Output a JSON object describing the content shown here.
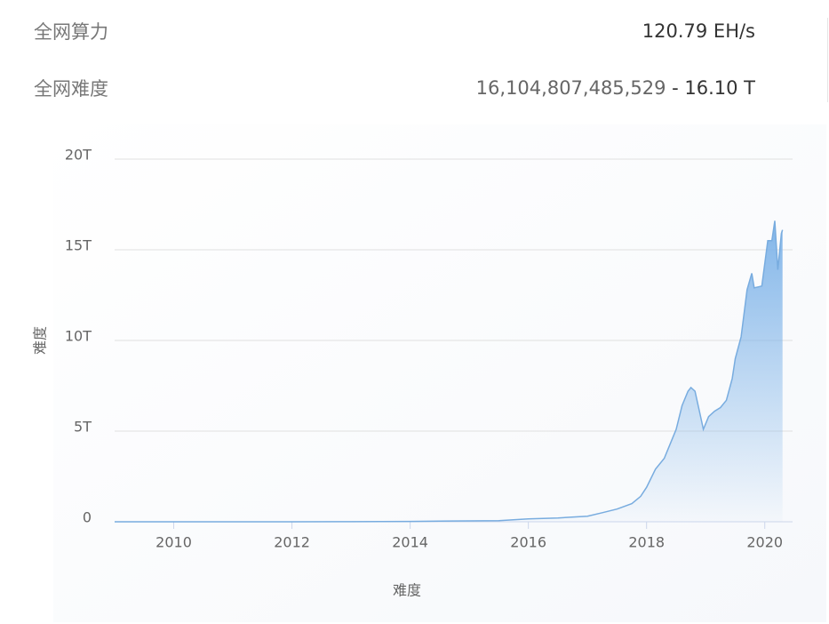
{
  "stats": [
    {
      "label": "全网算力",
      "value": "120.79 EH/s"
    },
    {
      "label": "全网难度",
      "value": "16,104,807,485,529",
      "value_short": "- 16.10 T"
    }
  ],
  "chart_data": {
    "type": "area",
    "x_label": "难度",
    "y_label": "难度",
    "color": "#78acdf",
    "grid": true,
    "xlim": [
      2009,
      2020.47
    ],
    "xticks": [
      2010,
      2012,
      2014,
      2016,
      2018,
      2020
    ],
    "ylim": [
      0,
      20
    ],
    "yticks": [
      0,
      {
        "value": 5,
        "label": "5T"
      },
      {
        "value": 10,
        "label": "10T"
      },
      {
        "value": 15,
        "label": "15T"
      },
      {
        "value": 20,
        "label": "20T"
      }
    ],
    "x": [
      2009.0,
      2010.0,
      2011.0,
      2012.0,
      2013.0,
      2014.0,
      2014.5,
      2015.0,
      2015.5,
      2016.0,
      2016.5,
      2017.0,
      2017.25,
      2017.5,
      2017.75,
      2017.9,
      2018.0,
      2018.15,
      2018.3,
      2018.4,
      2018.5,
      2018.6,
      2018.7,
      2018.75,
      2018.82,
      2018.9,
      2018.96,
      2019.05,
      2019.15,
      2019.25,
      2019.35,
      2019.45,
      2019.5,
      2019.6,
      2019.7,
      2019.78,
      2019.82,
      2019.95,
      2020.05,
      2020.12,
      2020.17,
      2020.22,
      2020.28,
      2020.3
    ],
    "series": [
      {
        "name": "难度",
        "color": "#78acdf",
        "values": [
          0.0,
          0.0,
          0.0,
          0.002,
          0.005,
          0.02,
          0.04,
          0.05,
          0.06,
          0.16,
          0.21,
          0.31,
          0.5,
          0.7,
          1.0,
          1.4,
          1.9,
          2.9,
          3.5,
          4.3,
          5.1,
          6.4,
          7.2,
          7.4,
          7.2,
          6.0,
          5.1,
          5.8,
          6.1,
          6.3,
          6.7,
          7.9,
          9.0,
          10.2,
          12.8,
          13.7,
          12.9,
          13.0,
          15.5,
          15.5,
          16.6,
          13.9,
          15.9,
          16.1
        ]
      }
    ]
  }
}
